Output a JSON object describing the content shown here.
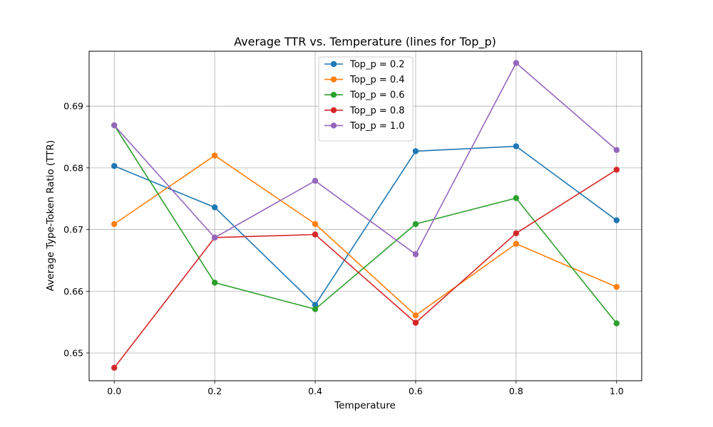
{
  "chart_data": {
    "type": "line",
    "title": "Average TTR vs. Temperature (lines for Top_p)",
    "xlabel": "Temperature",
    "ylabel": "Average Type-Token Ratio (TTR)",
    "x": [
      0.0,
      0.2,
      0.4,
      0.6,
      0.8,
      1.0
    ],
    "x_tick_labels": [
      "0.0",
      "0.2",
      "0.4",
      "0.6",
      "0.8",
      "1.0"
    ],
    "y_ticks": [
      0.65,
      0.66,
      0.67,
      0.68,
      0.69
    ],
    "y_tick_labels": [
      "0.65",
      "0.66",
      "0.67",
      "0.68",
      "0.69"
    ],
    "xlim": [
      -0.05,
      1.05
    ],
    "ylim": [
      0.6455,
      0.6989
    ],
    "grid": true,
    "legend_position": "top-center",
    "series": [
      {
        "name": "Top_p = 0.2",
        "color": "#1f77b4",
        "values": [
          0.6803,
          0.6736,
          0.6578,
          0.6827,
          0.6835,
          0.6715
        ]
      },
      {
        "name": "Top_p = 0.4",
        "color": "#ff7f0e",
        "values": [
          0.6709,
          0.682,
          0.6709,
          0.6561,
          0.6677,
          0.6607
        ]
      },
      {
        "name": "Top_p = 0.6",
        "color": "#2ca02c",
        "values": [
          0.6869,
          0.6614,
          0.6571,
          0.6709,
          0.6751,
          0.6548
        ]
      },
      {
        "name": "Top_p = 0.8",
        "color": "#d62728",
        "values": [
          0.6476,
          0.6687,
          0.6692,
          0.6549,
          0.6694,
          0.6797
        ]
      },
      {
        "name": "Top_p = 1.0",
        "color": "#9467bd",
        "values": [
          0.6869,
          0.6687,
          0.6779,
          0.666,
          0.697,
          0.6829
        ]
      }
    ]
  }
}
